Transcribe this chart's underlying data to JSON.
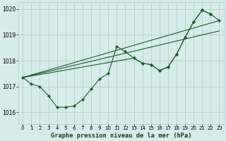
{
  "bg_color": "#d6ecea",
  "grid_color": "#b0ccca",
  "line_color": "#1a5c28",
  "xlabel": "Graphe pression niveau de la mer (hPa)",
  "ylim": [
    1015.55,
    1020.25
  ],
  "xlim": [
    -0.5,
    23.5
  ],
  "yticks": [
    1016,
    1017,
    1018,
    1019,
    1020
  ],
  "xticks": [
    0,
    1,
    2,
    3,
    4,
    5,
    6,
    7,
    8,
    9,
    10,
    11,
    12,
    13,
    14,
    15,
    16,
    17,
    18,
    19,
    20,
    21,
    22,
    23
  ],
  "series1_x": [
    0,
    1,
    2,
    3,
    4,
    5,
    6,
    7,
    8,
    9,
    10,
    11,
    12,
    13,
    14,
    15,
    16,
    17,
    18,
    19,
    20,
    21,
    22
  ],
  "series1_y": [
    1017.35,
    1017.1,
    1017.0,
    1016.65,
    1016.2,
    1016.2,
    1016.25,
    1016.5,
    1016.9,
    1017.3,
    1017.5,
    1018.55,
    1018.35,
    1018.1,
    1017.9,
    1017.85,
    1017.62,
    1017.75,
    1018.25,
    1018.9,
    1019.5,
    1019.95,
    1019.8
  ],
  "series2_x": [
    13,
    14,
    15,
    16,
    17,
    18,
    19,
    20,
    21,
    22,
    23
  ],
  "series2_y": [
    1018.1,
    1017.9,
    1017.85,
    1017.62,
    1017.75,
    1018.25,
    1018.9,
    1019.5,
    1019.95,
    1019.8,
    1019.55
  ],
  "trend1_x": [
    0,
    23
  ],
  "trend1_y": [
    1017.35,
    1019.55
  ],
  "trend2_x": [
    0,
    23
  ],
  "trend2_y": [
    1017.35,
    1019.15
  ],
  "trend3_x": [
    0,
    13
  ],
  "trend3_y": [
    1017.35,
    1018.1
  ]
}
